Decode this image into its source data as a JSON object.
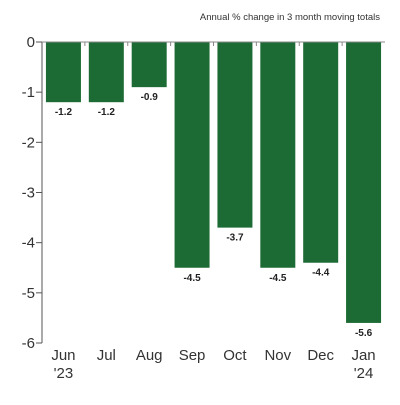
{
  "chart_data": {
    "type": "bar",
    "subtitle": "Annual % change in 3 month moving totals",
    "categories": [
      {
        "top": "Jun",
        "bottom": "'23"
      },
      {
        "top": "Jul",
        "bottom": ""
      },
      {
        "top": "Aug",
        "bottom": ""
      },
      {
        "top": "Sep",
        "bottom": ""
      },
      {
        "top": "Oct",
        "bottom": ""
      },
      {
        "top": "Nov",
        "bottom": ""
      },
      {
        "top": "Dec",
        "bottom": ""
      },
      {
        "top": "Jan",
        "bottom": "'24"
      }
    ],
    "values": [
      -1.2,
      -1.2,
      -0.9,
      -4.5,
      -3.7,
      -4.5,
      -4.4,
      -5.6
    ],
    "data_labels": [
      "-1.2",
      "-1.2",
      "-0.9",
      "-4.5",
      "-3.7",
      "-4.5",
      "-4.4",
      "-5.6"
    ],
    "y_ticks": [
      0,
      -1,
      -2,
      -3,
      -4,
      -5,
      -6
    ],
    "y_tick_labels": [
      "0",
      "-1",
      "-2",
      "-3",
      "-4",
      "-5",
      "-6"
    ],
    "ylim": [
      -6,
      0
    ],
    "grid": false,
    "legend": "none",
    "bar_color": "#1d6b34",
    "axis_color": "#555555",
    "text_color": "#333333"
  }
}
